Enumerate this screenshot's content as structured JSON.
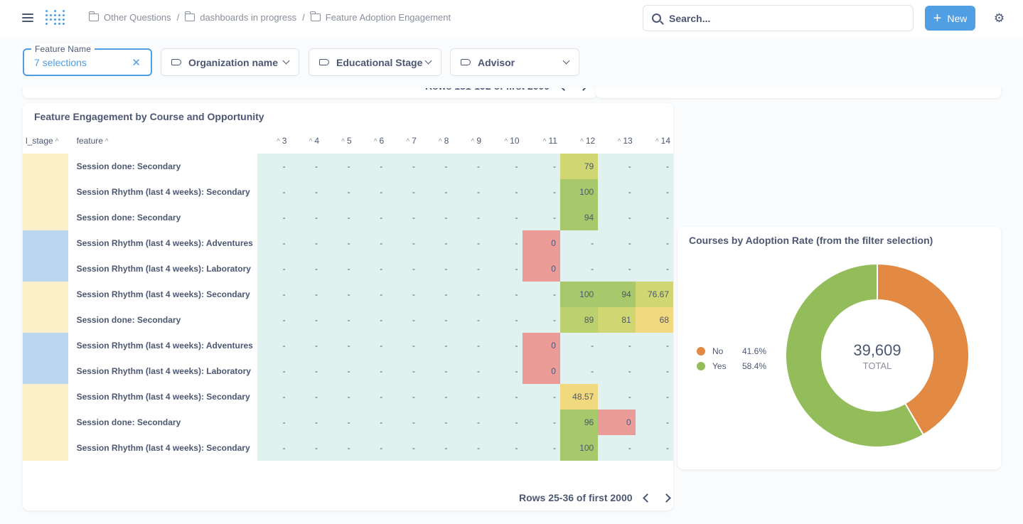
{
  "breadcrumb": [
    "Other Questions",
    "dashboards in progress",
    "Feature Adoption Engagement"
  ],
  "search": {
    "placeholder": "Search..."
  },
  "new_button": "New",
  "filters": [
    {
      "label": "Feature Name",
      "value": "7 selections"
    },
    {
      "label": "Organization name"
    },
    {
      "label": "Educational Stage"
    },
    {
      "label": "Advisor"
    }
  ],
  "top_card_rows_text": "Rows 181-192 of first 2000",
  "table_card": {
    "title": "Feature Engagement by Course and Opportunity",
    "columns": [
      "l_stage",
      "feature",
      "3",
      "4",
      "5",
      "6",
      "7",
      "8",
      "9",
      "10",
      "11",
      "12",
      "13",
      "14"
    ],
    "rows": [
      {
        "stage_color": "#faf0c8",
        "feature": "Session done: Secondary",
        "values": [
          "-",
          "-",
          "-",
          "-",
          "-",
          "-",
          "-",
          "-",
          "-",
          "79",
          "-",
          "-"
        ]
      },
      {
        "stage_color": "#faf0c8",
        "feature": "Session Rhythm (last 4 weeks): Secondary",
        "values": [
          "-",
          "-",
          "-",
          "-",
          "-",
          "-",
          "-",
          "-",
          "-",
          "100",
          "-",
          "-"
        ]
      },
      {
        "stage_color": "#faf0c8",
        "feature": "Session done: Secondary",
        "values": [
          "-",
          "-",
          "-",
          "-",
          "-",
          "-",
          "-",
          "-",
          "-",
          "94",
          "-",
          "-"
        ]
      },
      {
        "stage_color": "#bdd6f0",
        "feature": "Session Rhythm (last 4 weeks): Adventures",
        "values": [
          "-",
          "-",
          "-",
          "-",
          "-",
          "-",
          "-",
          "-",
          "0",
          "-",
          "-",
          "-"
        ]
      },
      {
        "stage_color": "#bdd6f0",
        "feature": "Session Rhythm (last 4 weeks): Laboratory",
        "values": [
          "-",
          "-",
          "-",
          "-",
          "-",
          "-",
          "-",
          "-",
          "0",
          "-",
          "-",
          "-"
        ]
      },
      {
        "stage_color": "#faf0c8",
        "feature": "Session Rhythm (last 4 weeks): Secondary",
        "values": [
          "-",
          "-",
          "-",
          "-",
          "-",
          "-",
          "-",
          "-",
          "-",
          "100",
          "94",
          "76.67"
        ]
      },
      {
        "stage_color": "#faf0c8",
        "feature": "Session done: Secondary",
        "values": [
          "-",
          "-",
          "-",
          "-",
          "-",
          "-",
          "-",
          "-",
          "-",
          "89",
          "81",
          "68"
        ]
      },
      {
        "stage_color": "#bdd6f0",
        "feature": "Session Rhythm (last 4 weeks): Adventures",
        "values": [
          "-",
          "-",
          "-",
          "-",
          "-",
          "-",
          "-",
          "-",
          "0",
          "-",
          "-",
          "-"
        ]
      },
      {
        "stage_color": "#bdd6f0",
        "feature": "Session Rhythm (last 4 weeks): Laboratory",
        "values": [
          "-",
          "-",
          "-",
          "-",
          "-",
          "-",
          "-",
          "-",
          "0",
          "-",
          "-",
          "-"
        ]
      },
      {
        "stage_color": "#faf0c8",
        "feature": "Session Rhythm (last 4 weeks): Secondary",
        "values": [
          "-",
          "-",
          "-",
          "-",
          "-",
          "-",
          "-",
          "-",
          "-",
          "48.57",
          "-",
          "-"
        ]
      },
      {
        "stage_color": "#faf0c8",
        "feature": "Session done: Secondary",
        "values": [
          "-",
          "-",
          "-",
          "-",
          "-",
          "-",
          "-",
          "-",
          "-",
          "96",
          "0",
          "-"
        ]
      },
      {
        "stage_color": "#faf0c8",
        "feature": "Session Rhythm (last 4 weeks): Secondary",
        "values": [
          "-",
          "-",
          "-",
          "-",
          "-",
          "-",
          "-",
          "-",
          "-",
          "100",
          "-",
          "-"
        ]
      }
    ],
    "rows_text": "Rows 25-36 of first 2000",
    "color_scale": {
      "empty": "#e1f1ef",
      "bad": "#ec9c98",
      "mid": "#f1d97f",
      "good": "#a7c96c"
    }
  },
  "donut_card": {
    "title": "Courses by Adoption Rate (from the filter selection)",
    "total_value": "39,609",
    "total_label": "TOTAL",
    "chart_data": {
      "type": "pie",
      "categories": [
        "No",
        "Yes"
      ],
      "values": [
        41.6,
        58.4
      ],
      "colors": [
        "#e28a43",
        "#93bd5b"
      ],
      "labels": [
        "41.6%",
        "58.4%"
      ],
      "legend": "left"
    }
  }
}
